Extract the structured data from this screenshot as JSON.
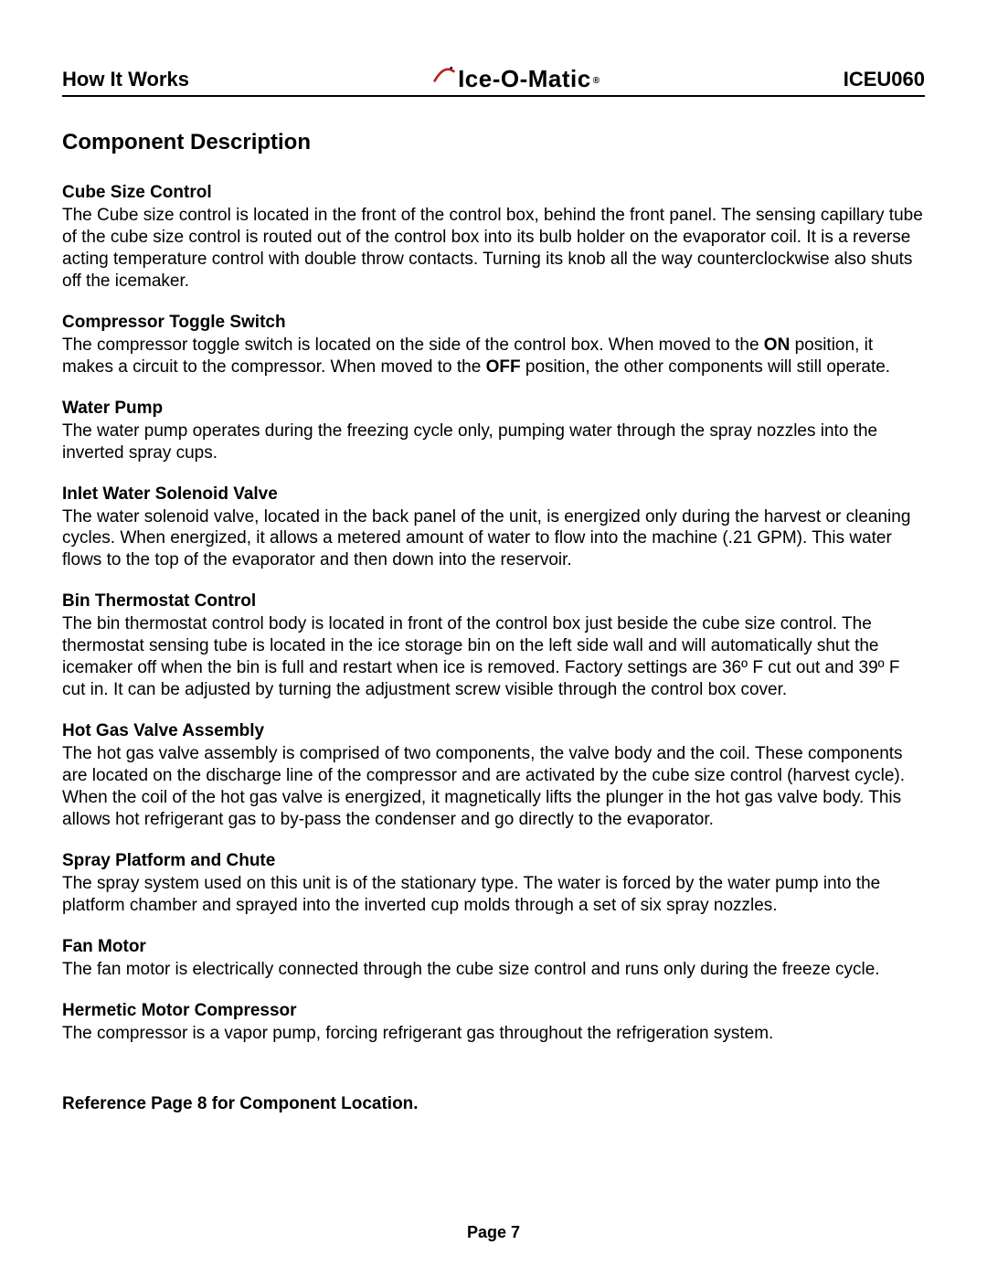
{
  "header": {
    "left": "How It Works",
    "brand": "Ice-O-Matic",
    "right": "ICEU060",
    "swoosh_color": "#b5221e"
  },
  "title": "Component Description",
  "sections": [
    {
      "heading": "Cube Size Control",
      "body": "The Cube size control is located in the front of the control box, behind the front panel.  The sensing capillary tube of the cube size control is routed out of the control box into its bulb holder on the evaporator coil.  It is a reverse acting temperature control with double throw contacts.  Turning its knob all the way counterclockwise also shuts off the icemaker."
    },
    {
      "heading": "Compressor Toggle Switch",
      "body": "The compressor toggle switch is located on the side of the control box.  When moved to the <b>ON</b> position, it makes a circuit to the compressor.  When moved to the <b>OFF</b> position, the other components will still operate."
    },
    {
      "heading": "Water Pump",
      "body": "The water pump operates during the freezing cycle only, pumping water through the spray nozzles into the inverted spray cups."
    },
    {
      "heading": "Inlet Water Solenoid Valve",
      "body": "The water solenoid valve, located in the back panel of the unit, is energized only during the harvest or cleaning cycles.  When energized, it allows a metered amount of water to flow into the machine (.21 GPM).  This water flows to the top of the evaporator and then down into the reservoir."
    },
    {
      "heading": "Bin Thermostat Control",
      "body": "The bin thermostat control body is located in front of the control box just beside the cube size control.  The thermostat sensing tube is located in the ice storage bin on the left side wall and will automatically shut the icemaker off when the bin is full and restart when ice is removed.  Factory settings are 36º F cut out and 39º F cut in.  It can be adjusted by turning the adjustment screw visible through the control box cover."
    },
    {
      "heading": "Hot Gas Valve Assembly",
      "body": "The hot gas valve assembly is comprised of two components, the valve body and the coil.  These components are located on the discharge line of the compressor and are activated by the cube size control (harvest cycle).  When the coil of the hot gas valve is energized, it magnetically lifts the plunger in the hot gas valve body.  This allows hot refrigerant gas to by-pass the condenser and go directly to the evaporator."
    },
    {
      "heading": "Spray Platform and Chute",
      "body": "The spray system used on this unit is of the stationary type.  The water is forced by the water pump into the platform chamber and sprayed into the inverted cup molds through a set of six spray nozzles."
    },
    {
      "heading": "Fan Motor",
      "body": "The fan motor is electrically connected through the cube size control and runs only during the freeze cycle."
    },
    {
      "heading": "Hermetic Motor Compressor",
      "body": "The compressor is a vapor pump, forcing refrigerant gas throughout the refrigeration system."
    }
  ],
  "reference": "Reference Page 8 for Component Location.",
  "footer": "Page 7",
  "style": {
    "heading_fontsize": 19,
    "body_fontsize": 19,
    "title_fontsize": 24,
    "header_fontsize": 22,
    "rule_color": "#000000",
    "text_color": "#000000",
    "bg_color": "#ffffff"
  }
}
